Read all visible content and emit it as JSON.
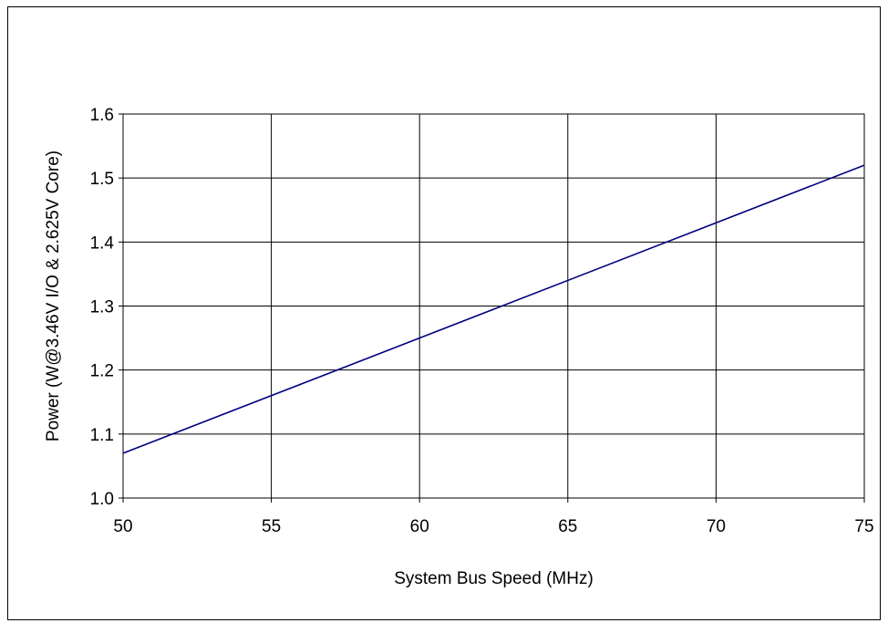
{
  "chart_data": {
    "type": "line",
    "title": "",
    "xlabel": "System Bus Speed (MHz)",
    "ylabel": "Power (W@3.46V I/O & 2.625V Core)",
    "xlim": [
      50,
      75
    ],
    "ylim": [
      1.0,
      1.6
    ],
    "x_ticks": [
      "50",
      "55",
      "60",
      "65",
      "70",
      "75"
    ],
    "y_ticks": [
      "1.0",
      "1.1",
      "1.2",
      "1.3",
      "1.4",
      "1.5",
      "1.6"
    ],
    "grid": true,
    "legend": "none",
    "series": [
      {
        "color": "#000080",
        "x": [
          50,
          75
        ],
        "y": [
          1.07,
          1.52
        ]
      }
    ]
  }
}
